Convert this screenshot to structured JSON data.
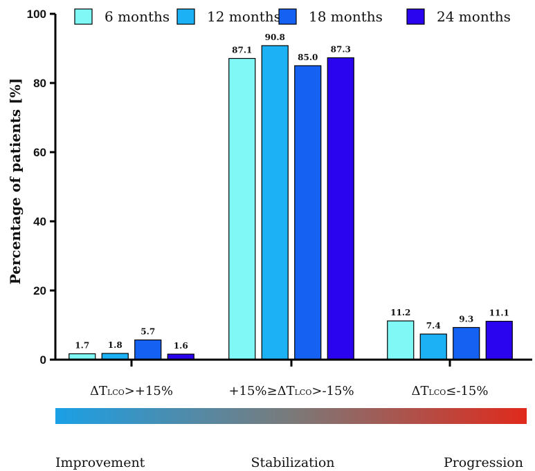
{
  "chart_data": {
    "type": "bar",
    "ylabel": "Percentage of patients [%]",
    "ylim": [
      0,
      100
    ],
    "yticks": [
      0,
      20,
      40,
      60,
      80,
      100
    ],
    "categories": [
      {
        "pre": "ΔT",
        "sub": "LCO",
        "post": ">+15%"
      },
      {
        "pre": "+15%≥ΔT",
        "sub": "LCO",
        "post": ">-15%"
      },
      {
        "pre": "ΔT",
        "sub": "LCO",
        "post": "≤-15%"
      }
    ],
    "series": [
      {
        "name": "6 months",
        "color": "#7ff8f6",
        "values": [
          1.7,
          87.1,
          11.2
        ]
      },
      {
        "name": "12 months",
        "color": "#1cb0f4",
        "values": [
          1.8,
          90.8,
          7.4
        ]
      },
      {
        "name": "18 months",
        "color": "#1461f2",
        "values": [
          5.7,
          85.0,
          9.3
        ]
      },
      {
        "name": "24 months",
        "color": "#2a04ef",
        "values": [
          1.6,
          87.3,
          11.1
        ]
      }
    ],
    "value_labels": [
      [
        "1.7",
        "87.1",
        "11.2"
      ],
      [
        "1.8",
        "90.8",
        "7.4"
      ],
      [
        "5.7",
        "85.0",
        "9.3"
      ],
      [
        "1.6",
        "87.3",
        "11.1"
      ]
    ],
    "legend_position": "top",
    "grid": false
  },
  "scale": {
    "gradient_colors": [
      "#1aa0e6",
      "#7a7a7a",
      "#e02a1c"
    ],
    "labels": [
      "Improvement",
      "Stabilization",
      "Progression"
    ]
  }
}
